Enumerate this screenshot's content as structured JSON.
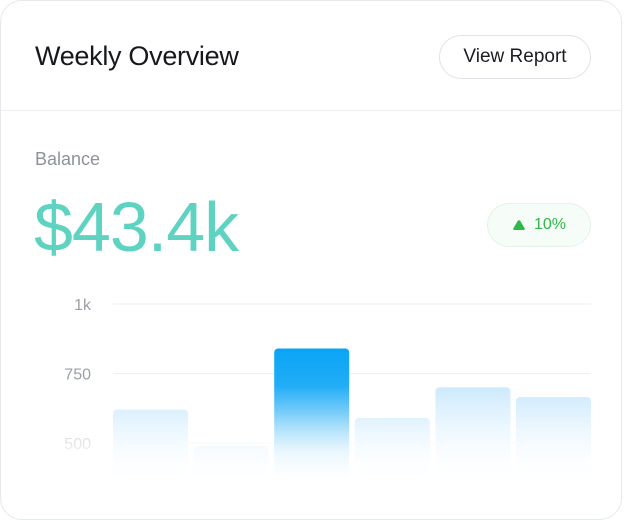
{
  "header": {
    "title": "Weekly Overview",
    "report_button_label": "View Report"
  },
  "balance": {
    "label": "Balance",
    "value": "$43.4k",
    "change": "10%",
    "change_icon": "triangle-up-icon"
  },
  "colors": {
    "accent_value": "#5fd3c2",
    "positive": "#2fb84a",
    "bar_highlight": "#0ea5f5",
    "bar_default": "#cfeafd"
  },
  "chart_data": {
    "type": "bar",
    "y_ticks": [
      "1k",
      "750",
      "500"
    ],
    "y_tick_values": [
      1000,
      750,
      500
    ],
    "values": [
      620,
      490,
      840,
      590,
      700,
      665
    ],
    "highlight_index": 2,
    "ylim": [
      500,
      1000
    ]
  }
}
